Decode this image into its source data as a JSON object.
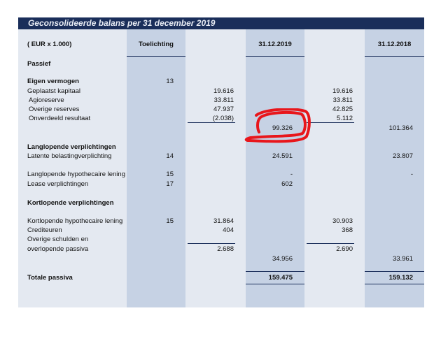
{
  "title": "Geconsolideerde balans per 31 december 2019",
  "headers": {
    "unit": "( EUR x 1.000)",
    "note": "Toelichting",
    "date_2019": "31.12.2019",
    "date_2018": "31.12.2018"
  },
  "sections": {
    "passief": "Passief",
    "eigen_vermogen": "Eigen vermogen",
    "ev_note": "13",
    "langlopend": "Langlopende verplichtingen",
    "kortlopend": "Kortlopende verplichtingen"
  },
  "rows": {
    "geplaatst": {
      "label": "Geplaatst kapitaal",
      "v2019": "19.616",
      "v2018": "19.616"
    },
    "agio": {
      "label": "Agioreserve",
      "v2019": "33.811",
      "v2018": "33.811"
    },
    "overige_res": {
      "label": "Overige reserves",
      "v2019": "47.937",
      "v2018": "42.825"
    },
    "onverdeeld": {
      "label": "Onverdeeld resultaat",
      "v2019": "(2.038)",
      "v2018": "5.112"
    },
    "ev_total": {
      "v2019": "99.326",
      "v2018": "101.364"
    },
    "latente": {
      "label": "Latente belastingverplichting",
      "note": "14",
      "v2019": "24.591",
      "v2018": "23.807"
    },
    "hypo_lang": {
      "label": "Langlopende hypothecaire lening",
      "note": "15",
      "v2019": "-",
      "v2018": "-"
    },
    "lease": {
      "label": "Lease verplichtingen",
      "note": "17",
      "v2019": "602"
    },
    "hypo_kort": {
      "label": "Kortlopende hypothecaire lening",
      "note": "15",
      "v2019": "31.864",
      "v2018": "30.903"
    },
    "crediteuren": {
      "label": "Crediteuren",
      "v2019": "404",
      "v2018": "368"
    },
    "overige_sch_1": {
      "label": "Overige schulden en"
    },
    "overige_sch_2": {
      "label": "overlopende passiva",
      "v2019": "2.688",
      "v2018": "2.690"
    },
    "kort_total": {
      "v2019": "34.956",
      "v2018": "33.961"
    },
    "totale": {
      "label": "Totale passiva",
      "v2019": "159.475",
      "v2018": "159.132"
    }
  },
  "colors": {
    "title_bg": "#1a2e5a",
    "panel": "#e4e9f1",
    "band": "#c6d2e4",
    "annotation": "#e8161b"
  }
}
